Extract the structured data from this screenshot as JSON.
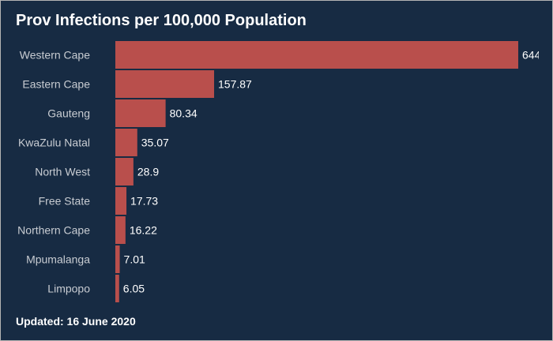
{
  "header": {
    "title": "Prov Infections per 100,000 Population"
  },
  "footer": {
    "updated": "Updated: 16 June 2020"
  },
  "colors": {
    "background": "#172b43",
    "bar": "#b94f4c",
    "text": "#ffffff",
    "category_text": "#c8ccd2"
  },
  "chart_data": {
    "type": "bar",
    "orientation": "horizontal",
    "title": "Prov Infections per 100,000 Population",
    "categories": [
      "Western Cape",
      "Eastern Cape",
      "Gauteng",
      "KwaZulu Natal",
      "North West",
      "Free State",
      "Northern Cape",
      "Mpumalanga",
      "Limpopo"
    ],
    "values": [
      644,
      157.87,
      80.34,
      35.07,
      28.9,
      17.73,
      16.22,
      7.01,
      6.05
    ],
    "data_labels": [
      "644",
      "157.87",
      "80.34",
      "35.07",
      "28.9",
      "17.73",
      "16.22",
      "7.01",
      "6.05"
    ],
    "xlim": [
      0,
      644
    ],
    "grid": false,
    "legend": "none"
  }
}
